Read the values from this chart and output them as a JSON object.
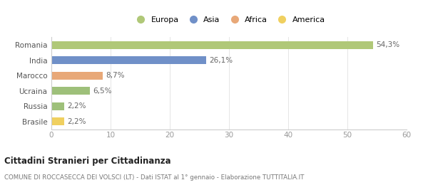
{
  "categories": [
    "Brasile",
    "Russia",
    "Ucraina",
    "Marocco",
    "India",
    "Romania"
  ],
  "values": [
    2.2,
    2.2,
    6.5,
    8.7,
    26.1,
    54.3
  ],
  "labels": [
    "2,2%",
    "2,2%",
    "6,5%",
    "8,7%",
    "26,1%",
    "54,3%"
  ],
  "colors": [
    "#f0d060",
    "#9ec07a",
    "#9ec07a",
    "#e8a878",
    "#7090c8",
    "#b0c878"
  ],
  "legend": [
    {
      "label": "Europa",
      "color": "#b0c878"
    },
    {
      "label": "Asia",
      "color": "#7090c8"
    },
    {
      "label": "Africa",
      "color": "#e8a878"
    },
    {
      "label": "America",
      "color": "#f0d060"
    }
  ],
  "xlim": [
    0,
    60
  ],
  "xticks": [
    0,
    10,
    20,
    30,
    40,
    50,
    60
  ],
  "title": "Cittadini Stranieri per Cittadinanza",
  "subtitle": "COMUNE DI ROCCASECCA DEI VOLSCI (LT) - Dati ISTAT al 1° gennaio - Elaborazione TUTTITALIA.IT",
  "background_color": "#ffffff",
  "bar_height": 0.5
}
